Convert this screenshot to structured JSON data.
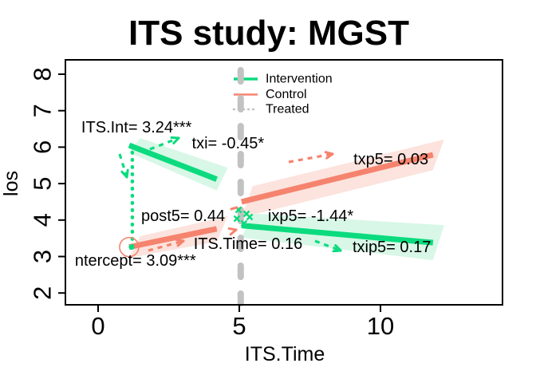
{
  "title": "ITS study: MGST",
  "x_axis": {
    "label": "ITS.Time",
    "ticks": [
      0,
      5,
      10
    ]
  },
  "y_axis": {
    "label": "los",
    "ticks": [
      2,
      3,
      4,
      5,
      6,
      7,
      8
    ]
  },
  "legend": {
    "items": [
      {
        "label": "Intervention",
        "style": "solid",
        "color": "#0bdb7e"
      },
      {
        "label": "Control",
        "style": "solid",
        "color": "#f5836e"
      },
      {
        "label": "Treated",
        "style": "dotted",
        "color": "#c2c2c2"
      }
    ]
  },
  "colors": {
    "intervention_line": "#0bdb7e",
    "intervention_band": "#d8f7e7",
    "control_line": "#f5836e",
    "control_band": "#fce3dd",
    "treatment_dash": "#c2c2c2",
    "text": "#000000"
  },
  "chart_data": {
    "type": "line",
    "title": "ITS study: MGST",
    "xlabel": "ITS.Time",
    "ylabel": "los",
    "xlim": [
      -1.2,
      14.3
    ],
    "ylim": [
      1.8,
      8.4
    ],
    "x_ticks": [
      0,
      5,
      10
    ],
    "y_ticks": [
      2,
      3,
      4,
      5,
      6,
      7,
      8
    ],
    "treatment_time": 5.05,
    "series": [
      {
        "name": "intervention-pre",
        "group": "Intervention",
        "period": "pre",
        "color": "#0bdb7e",
        "band_color": "#d8f7e7",
        "x": [
          1.1,
          4.2
        ],
        "y": [
          6.05,
          5.12
        ],
        "band": [
          0.2,
          0.31
        ]
      },
      {
        "name": "control-pre",
        "group": "Control",
        "period": "pre",
        "color": "#f5836e",
        "band_color": "#fce3dd",
        "x": [
          1.1,
          4.2
        ],
        "y": [
          3.26,
          3.76
        ],
        "band": [
          0.3,
          0.35
        ]
      },
      {
        "name": "control-post",
        "group": "Control",
        "period": "post",
        "color": "#f5836e",
        "band_color": "#fce3dd",
        "x": [
          5.08,
          11.86
        ],
        "y": [
          4.5,
          5.79
        ],
        "band": [
          0.43,
          0.42
        ]
      },
      {
        "name": "intervention-post",
        "group": "Intervention",
        "period": "post",
        "color": "#0bdb7e",
        "band_color": "#d8f7e7",
        "x": [
          5.08,
          11.86
        ],
        "y": [
          3.85,
          3.38
        ],
        "band": [
          0.33,
          0.48
        ]
      }
    ],
    "intercept_point": {
      "x": 1.1,
      "y": 3.26
    },
    "annotations": [
      {
        "name": "its-int",
        "text": "ITS.Int= 3.24***",
        "x": 1.36,
        "y": 6.53
      },
      {
        "name": "txi",
        "text": "txi= -0.45*",
        "x": 4.6,
        "y": 6.1
      },
      {
        "name": "txp5",
        "text": "txp5= 0.03",
        "x": 10.37,
        "y": 5.66
      },
      {
        "name": "post5",
        "text": "post5= 0.44",
        "x": 3.01,
        "y": 4.1
      },
      {
        "name": "ixp5",
        "text": "ixp5= -1.44*",
        "x": 7.53,
        "y": 4.1
      },
      {
        "name": "its-time",
        "text": "ITS.Time= 0.16",
        "x": 5.31,
        "y": 3.34
      },
      {
        "name": "txip5",
        "text": "txip5= 0.17",
        "x": 10.4,
        "y": 3.25
      },
      {
        "name": "intercept",
        "text": "ntercept= 3.09***",
        "x": 1.32,
        "y": 2.88
      }
    ],
    "decorations": [
      {
        "kind": "arrow",
        "color": "#0bdb7e",
        "from": [
          150,
          193
        ],
        "to": [
          159,
          222
        ]
      },
      {
        "kind": "arrow",
        "color": "#0bdb7e",
        "from": [
          188,
          187
        ],
        "to": [
          224,
          173
        ]
      },
      {
        "kind": "arrow",
        "color": "#f5836e",
        "from": [
          362,
          203
        ],
        "to": [
          417,
          193
        ]
      },
      {
        "kind": "arrow",
        "color": "#f5836e",
        "from": [
          186,
          314
        ],
        "to": [
          230,
          302
        ]
      },
      {
        "kind": "arrow",
        "color": "#0bdb7e",
        "from": [
          395,
          302
        ],
        "to": [
          427,
          314
        ]
      },
      {
        "kind": "xmarks",
        "color": "#0bdb7e",
        "points": [
          [
            299,
            263
          ],
          [
            309,
            268
          ],
          [
            297,
            274
          ],
          [
            306,
            280
          ],
          [
            313,
            272
          ]
        ]
      },
      {
        "kind": "dash",
        "color": "#f5836e",
        "from": [
          290,
          262
        ],
        "to": [
          297,
          260
        ]
      },
      {
        "kind": "chevron",
        "color": "#f5836e",
        "at": [
          296,
          288
        ],
        "angle": -15
      }
    ]
  }
}
